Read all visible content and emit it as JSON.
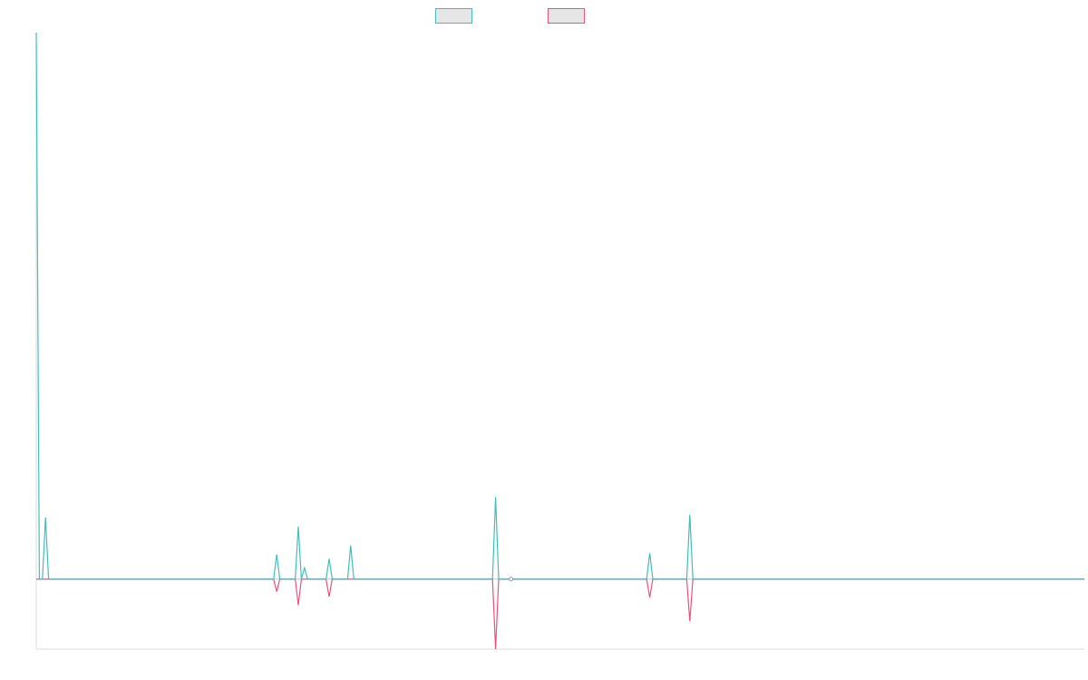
{
  "chart_data": {
    "type": "line",
    "title": "",
    "xlabel": "",
    "ylabel": "",
    "x": [
      0,
      0.5,
      1.0,
      1.5,
      2.0,
      2.5,
      38.5,
      39.0,
      39.5,
      42.0,
      42.5,
      43.0,
      43.5,
      44.0,
      47.0,
      47.5,
      48.0,
      50.5,
      51.0,
      51.5,
      74.0,
      74.5,
      75.0,
      77.0,
      99.0,
      99.5,
      100.0,
      105.5,
      106.0,
      106.5,
      170.0
    ],
    "ylim": [
      -100,
      780
    ],
    "series": [
      {
        "name": "",
        "color": "#3fbfbf",
        "values": [
          780,
          0,
          0,
          88,
          0,
          0,
          0,
          35,
          0,
          0,
          75,
          0,
          16,
          0,
          0,
          29,
          0,
          0,
          48,
          0,
          0,
          117,
          0,
          0,
          0,
          37,
          0,
          0,
          92,
          0,
          0
        ]
      },
      {
        "name": "",
        "color": "#f0507a",
        "values": [
          0,
          0,
          0,
          0,
          0,
          0,
          0,
          -18,
          0,
          0,
          -37,
          0,
          0,
          0,
          0,
          -25,
          0,
          0,
          0,
          0,
          0,
          -100,
          0,
          0,
          0,
          -26,
          0,
          0,
          -60,
          0,
          0
        ]
      }
    ],
    "zero_marker_x": 77.0,
    "grid": false,
    "legend": "top-center",
    "colors": {
      "legend_fill": "#e6e6e6",
      "axis": "#dddddd",
      "baseline": "#8899aa"
    }
  }
}
